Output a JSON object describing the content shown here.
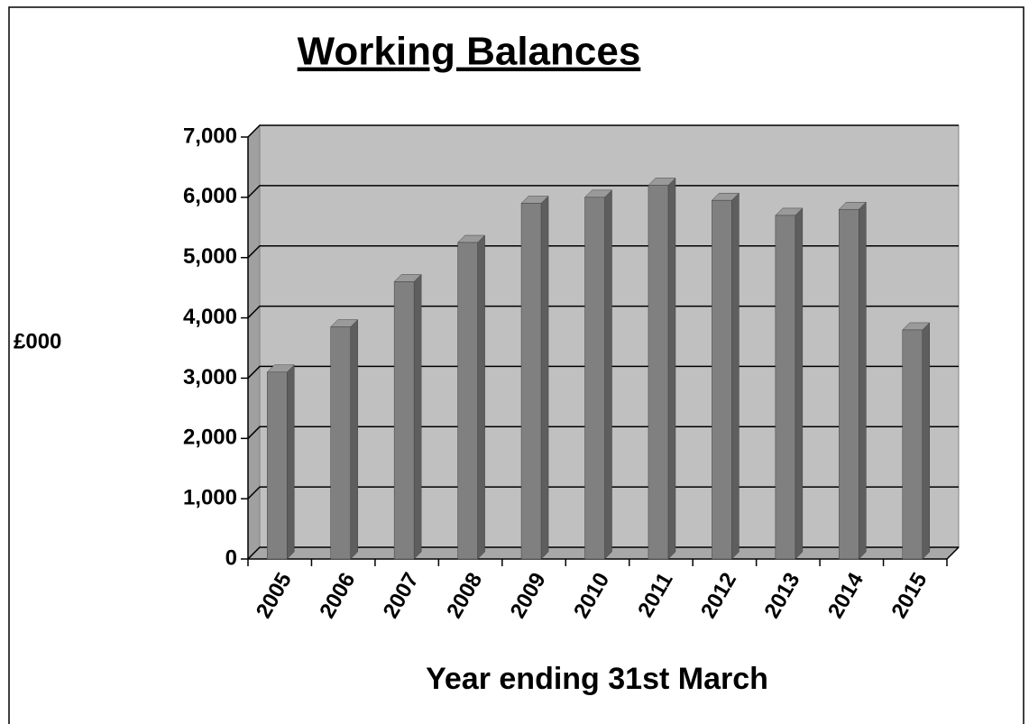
{
  "chart_data": {
    "type": "bar3d",
    "title": "Working Balances",
    "y_label": "£000",
    "x_label": "Year ending 31st March",
    "categories": [
      "2005",
      "2006",
      "2007",
      "2008",
      "2009",
      "2010",
      "2011",
      "2012",
      "2013",
      "2014",
      "2015"
    ],
    "values": [
      3100,
      3850,
      4600,
      5250,
      5900,
      6000,
      6200,
      5950,
      5700,
      5800,
      3800
    ],
    "color": "#808080",
    "ylim": [
      0,
      7000
    ],
    "yticks": [
      0,
      {
        "value": 1000,
        "label": "1,000"
      },
      {
        "value": 2000,
        "label": "2,000"
      },
      {
        "value": 3000,
        "label": "3,000"
      },
      {
        "value": 4000,
        "label": "4,000"
      },
      {
        "value": 5000,
        "label": "5,000"
      },
      {
        "value": 6000,
        "label": "6,000"
      },
      {
        "value": 7000,
        "label": "7,000"
      }
    ],
    "grid": true
  }
}
